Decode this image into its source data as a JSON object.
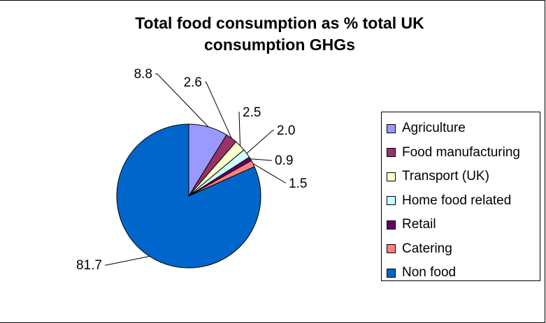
{
  "chart_data": {
    "type": "pie",
    "title": "Total food consumption as %  total UK consumption GHGs",
    "title_lines": [
      "Total food consumption as %  total UK",
      "consumption GHGs"
    ],
    "categories": [
      "Agriculture",
      "Food manufacturing",
      "Transport (UK)",
      "Home food related",
      "Retail",
      "Catering",
      "Non food"
    ],
    "values": [
      8.8,
      2.6,
      2.5,
      2.0,
      0.9,
      1.5,
      81.7
    ],
    "labels": [
      "8.8",
      "2.6",
      "2.5",
      "2.0",
      "0.9",
      "1.5",
      "81.7"
    ],
    "colors": [
      "#9999ff",
      "#993366",
      "#ffffcc",
      "#ccffff",
      "#660066",
      "#ff8080",
      "#0066cc"
    ],
    "legend": "right"
  }
}
